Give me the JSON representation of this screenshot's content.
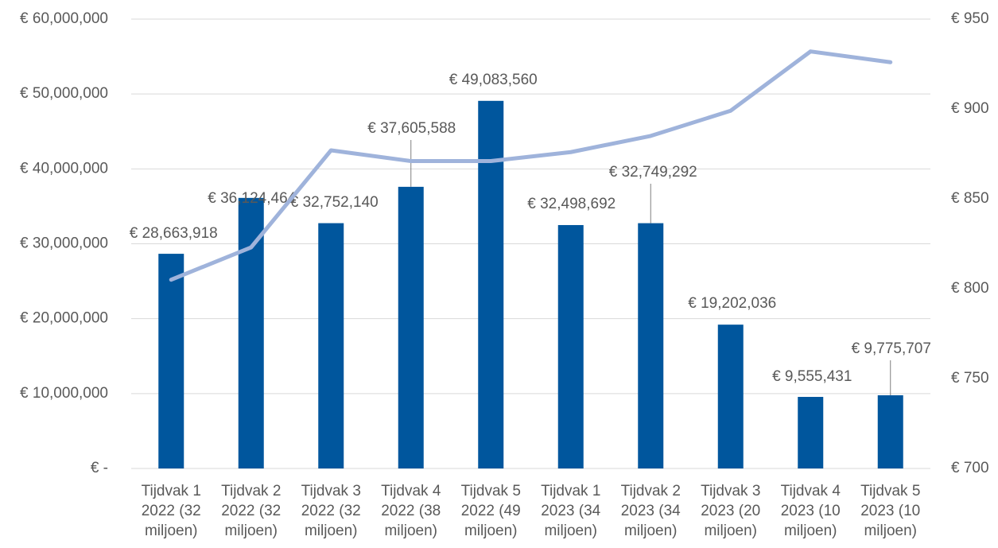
{
  "chart_data": {
    "type": "bar",
    "categories": [
      "Tijdvak 1 2022 (32 miljoen)",
      "Tijdvak 2 2022 (32 miljoen)",
      "Tijdvak 3 2022 (32 miljoen)",
      "Tijdvak 4 2022 (38 miljoen)",
      "Tijdvak 5 2022 (49 miljoen)",
      "Tijdvak 1 2023 (34 miljoen)",
      "Tijdvak 2 2023 (34 miljoen)",
      "Tijdvak 3 2023 (20 miljoen)",
      "Tijdvak 4 2023 (10 miljoen)",
      "Tijdvak 5 2023 (10 miljoen)"
    ],
    "series": [
      {
        "type": "bar",
        "color": "#00569d",
        "values": [
          28663918,
          36124464,
          32752140,
          37605588,
          49083560,
          32498692,
          32749292,
          19202036,
          9555431,
          9775707
        ],
        "value_labels": [
          "€ 28,663,918",
          "€ 36,124,464",
          "€ 32,752,140",
          "€ 37,605,588",
          "€ 49,083,560",
          "€ 32,498,692",
          "€ 32,749,292",
          "€ 19,202,036",
          "€ 9,555,431",
          "€ 9,775,707"
        ]
      },
      {
        "type": "line",
        "axis": "y2",
        "color": "#9fb3db",
        "values": [
          805,
          823,
          877,
          871,
          871,
          876,
          885,
          899,
          932,
          926
        ]
      }
    ],
    "ylim": [
      0,
      60000000
    ],
    "yticks": [
      {
        "value": 0,
        "label": "€ -"
      },
      {
        "value": 10000000,
        "label": "€ 10,000,000"
      },
      {
        "value": 20000000,
        "label": "€ 20,000,000"
      },
      {
        "value": 30000000,
        "label": "€ 30,000,000"
      },
      {
        "value": 40000000,
        "label": "€ 40,000,000"
      },
      {
        "value": 50000000,
        "label": "€ 50,000,000"
      },
      {
        "value": 60000000,
        "label": "€ 60,000,000"
      }
    ],
    "y2lim": [
      700,
      950
    ],
    "y2ticks": [
      {
        "value": 700,
        "label": "€ 700"
      },
      {
        "value": 750,
        "label": "€ 750"
      },
      {
        "value": 800,
        "label": "€ 800"
      },
      {
        "value": 850,
        "label": "€ 850"
      },
      {
        "value": 900,
        "label": "€ 900"
      },
      {
        "value": 950,
        "label": "€ 950"
      }
    ],
    "grid": true
  }
}
